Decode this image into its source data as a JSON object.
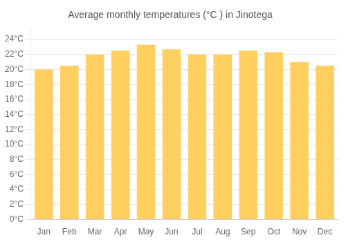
{
  "chart_data": {
    "type": "bar",
    "title": "Average monthly temperatures (°C ) in Jinotega",
    "categories": [
      "Jan",
      "Feb",
      "Mar",
      "Apr",
      "May",
      "Jun",
      "Jul",
      "Aug",
      "Sep",
      "Oct",
      "Nov",
      "Dec"
    ],
    "values": [
      20.0,
      20.5,
      22.0,
      22.5,
      23.3,
      22.7,
      22.0,
      22.0,
      22.5,
      22.3,
      21.0,
      20.5
    ],
    "color": "#FFD060",
    "ylim": [
      0,
      25.5
    ],
    "yticks": [
      {
        "value": 0,
        "label": "0°C"
      },
      {
        "value": 2,
        "label": "2°C"
      },
      {
        "value": 4,
        "label": "4°C"
      },
      {
        "value": 6,
        "label": "6°C"
      },
      {
        "value": 8,
        "label": "8°C"
      },
      {
        "value": 10,
        "label": "10°C"
      },
      {
        "value": 12,
        "label": "12°C"
      },
      {
        "value": 14,
        "label": "14°C"
      },
      {
        "value": 16,
        "label": "16°C"
      },
      {
        "value": 18,
        "label": "18°C"
      },
      {
        "value": 20,
        "label": "20°C"
      },
      {
        "value": 22,
        "label": "22°C"
      },
      {
        "value": 24,
        "label": "24°C"
      }
    ],
    "grid": true
  }
}
